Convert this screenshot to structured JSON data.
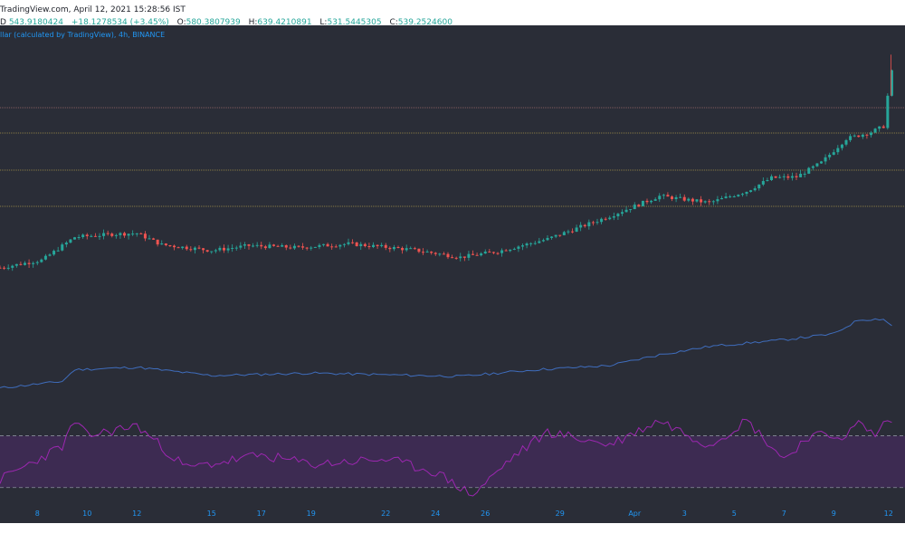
{
  "header": {
    "source_line": "TradingView.com, April 12, 2021 15:28:56 IST",
    "quote_prefix": "D",
    "last_value": "543.9180424",
    "change": "+18.1278534 (+3.45%)",
    "open_label": "O:",
    "open_value": "580.3807939",
    "high_label": "H:",
    "high_value": "639.4210891",
    "low_label": "L:",
    "low_value": "531.5445305",
    "close_label": "C:",
    "close_value": "539.2524600"
  },
  "symbol_line": "llar (calculated by TradingView), 4h, BINANCE",
  "colors": {
    "background": "#2a2d37",
    "up": "#26a69a",
    "down": "#ef5350",
    "volume_line": "#3f6dbd",
    "rsi_line": "#9c27b0",
    "rsi_band": "#3d2b52",
    "axis_text": "#2196f3"
  },
  "chart_data": [
    {
      "type": "candlestick",
      "title": "",
      "xlabel": "",
      "ylabel": "",
      "x_ticks": [
        "8",
        "10",
        "12",
        "15",
        "17",
        "19",
        "22",
        "24",
        "26",
        "29",
        "Apr",
        "3",
        "5",
        "7",
        "9",
        "12"
      ],
      "horizontal_levels_count": 4,
      "close_anchors": [
        {
          "day": 6.5,
          "value": 420
        },
        {
          "day": 8.2,
          "value": 428
        },
        {
          "day": 9.5,
          "value": 452
        },
        {
          "day": 11.0,
          "value": 455
        },
        {
          "day": 12.0,
          "value": 456
        },
        {
          "day": 13.0,
          "value": 444
        },
        {
          "day": 15.0,
          "value": 438
        },
        {
          "day": 16.5,
          "value": 443
        },
        {
          "day": 18.5,
          "value": 441
        },
        {
          "day": 20.5,
          "value": 445
        },
        {
          "day": 23.0,
          "value": 439
        },
        {
          "day": 25.0,
          "value": 431
        },
        {
          "day": 26.5,
          "value": 437
        },
        {
          "day": 28.5,
          "value": 450
        },
        {
          "day": 31.0,
          "value": 474
        },
        {
          "day": 33.0,
          "value": 495
        },
        {
          "day": 35.0,
          "value": 488
        },
        {
          "day": 36.5,
          "value": 500
        },
        {
          "day": 37.5,
          "value": 514
        },
        {
          "day": 38.5,
          "value": 515
        },
        {
          "day": 39.5,
          "value": 530
        },
        {
          "day": 40.5,
          "value": 555
        },
        {
          "day": 41.5,
          "value": 562
        },
        {
          "day": 42.0,
          "value": 568
        },
        {
          "day": 42.3,
          "value": 625
        }
      ]
    },
    {
      "type": "line",
      "name": "",
      "description_level_anchors": [
        {
          "day": 6.5,
          "value": 0.1
        },
        {
          "day": 9.0,
          "value": 0.18
        },
        {
          "day": 9.5,
          "value": 0.32
        },
        {
          "day": 12.0,
          "value": 0.35
        },
        {
          "day": 15.0,
          "value": 0.25
        },
        {
          "day": 19.0,
          "value": 0.28
        },
        {
          "day": 25.0,
          "value": 0.24
        },
        {
          "day": 28.0,
          "value": 0.32
        },
        {
          "day": 31.0,
          "value": 0.37
        },
        {
          "day": 33.0,
          "value": 0.5
        },
        {
          "day": 35.0,
          "value": 0.6
        },
        {
          "day": 38.0,
          "value": 0.68
        },
        {
          "day": 40.0,
          "value": 0.75
        },
        {
          "day": 41.0,
          "value": 0.92
        },
        {
          "day": 42.0,
          "value": 0.93
        },
        {
          "day": 42.3,
          "value": 0.85
        }
      ]
    },
    {
      "type": "line",
      "name": "",
      "rsi_band": [
        30,
        70
      ],
      "ylim": [
        20,
        90
      ],
      "series_anchors": [
        {
          "day": 6.5,
          "value": 36
        },
        {
          "day": 9.0,
          "value": 62
        },
        {
          "day": 9.5,
          "value": 81
        },
        {
          "day": 10.0,
          "value": 70
        },
        {
          "day": 12.0,
          "value": 78
        },
        {
          "day": 14.0,
          "value": 45
        },
        {
          "day": 17.0,
          "value": 55
        },
        {
          "day": 19.0,
          "value": 48
        },
        {
          "day": 22.0,
          "value": 52
        },
        {
          "day": 24.0,
          "value": 42
        },
        {
          "day": 25.5,
          "value": 24
        },
        {
          "day": 27.0,
          "value": 52
        },
        {
          "day": 28.5,
          "value": 73
        },
        {
          "day": 31.0,
          "value": 63
        },
        {
          "day": 33.0,
          "value": 82
        },
        {
          "day": 35.0,
          "value": 63
        },
        {
          "day": 36.5,
          "value": 82
        },
        {
          "day": 38.0,
          "value": 52
        },
        {
          "day": 39.0,
          "value": 70
        },
        {
          "day": 40.5,
          "value": 70
        },
        {
          "day": 41.0,
          "value": 80
        },
        {
          "day": 41.7,
          "value": 70
        },
        {
          "day": 42.2,
          "value": 85
        },
        {
          "day": 42.4,
          "value": 74
        }
      ]
    }
  ]
}
